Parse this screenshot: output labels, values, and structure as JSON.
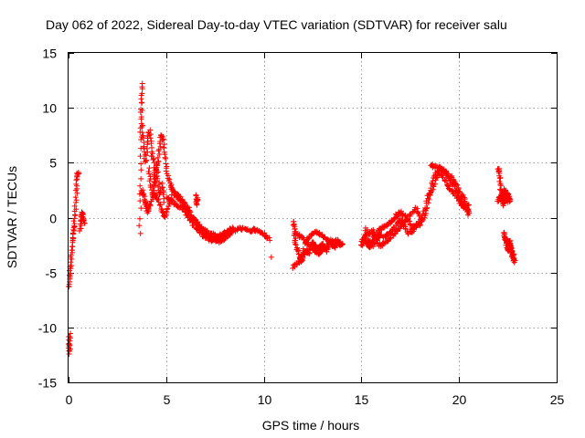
{
  "chart_data": {
    "type": "scatter",
    "title": "Day 062 of 2022, Sidereal Day-to-day VTEC variation (SDTVAR) for receiver salu",
    "xlabel": "GPS time / hours",
    "ylabel": "SDTVAR / TECUs",
    "xlim": [
      0,
      25
    ],
    "ylim": [
      -15,
      15
    ],
    "xticks": [
      0,
      5,
      10,
      15,
      20,
      25
    ],
    "yticks": [
      -15,
      -10,
      -5,
      0,
      5,
      10,
      15
    ],
    "grid": true,
    "marker": "plus",
    "color": "#ff0000",
    "segments": [
      [
        [
          0.0,
          -6.3
        ],
        [
          0.05,
          -5.5
        ],
        [
          0.1,
          -4.5
        ],
        [
          0.15,
          -3.2
        ],
        [
          0.2,
          -2.2
        ],
        [
          0.25,
          -1.5
        ],
        [
          0.3,
          -0.5
        ],
        [
          0.35,
          0.8
        ],
        [
          0.4,
          2.5
        ],
        [
          0.45,
          3.8
        ],
        [
          0.5,
          4.2
        ]
      ],
      [
        [
          0.0,
          -11.0
        ],
        [
          0.02,
          -12.5
        ],
        [
          0.05,
          -10.5
        ],
        [
          0.08,
          -12.0
        ]
      ],
      [
        [
          0.6,
          -1.3
        ],
        [
          0.65,
          -0.2
        ],
        [
          0.7,
          0.5
        ],
        [
          0.75,
          0.0
        ],
        [
          0.8,
          -0.5
        ]
      ],
      [
        [
          3.65,
          -1.5
        ],
        [
          3.68,
          3.0
        ],
        [
          3.7,
          7.0
        ],
        [
          3.72,
          9.5
        ],
        [
          3.75,
          12.3
        ],
        [
          3.78,
          8.5
        ],
        [
          3.85,
          6.5
        ],
        [
          3.95,
          5.0
        ],
        [
          4.05,
          7.0
        ],
        [
          4.15,
          8.0
        ],
        [
          4.25,
          6.0
        ],
        [
          4.35,
          5.0
        ],
        [
          4.45,
          3.0
        ],
        [
          4.55,
          4.5
        ],
        [
          4.65,
          6.0
        ],
        [
          4.75,
          7.5
        ],
        [
          4.85,
          7.0
        ],
        [
          4.95,
          5.5
        ],
        [
          5.05,
          4.0
        ],
        [
          5.2,
          3.0
        ],
        [
          5.35,
          2.5
        ],
        [
          5.5,
          2.0
        ],
        [
          5.7,
          1.5
        ],
        [
          5.9,
          1.0
        ],
        [
          6.1,
          0.5
        ],
        [
          6.3,
          0.0
        ],
        [
          6.5,
          -0.5
        ],
        [
          6.7,
          -1.0
        ],
        [
          6.9,
          -1.3
        ],
        [
          7.1,
          -1.6
        ],
        [
          7.3,
          -1.8
        ],
        [
          7.5,
          -2.0
        ],
        [
          7.7,
          -2.2
        ],
        [
          7.9,
          -2.0
        ],
        [
          8.1,
          -1.7
        ],
        [
          8.3,
          -1.4
        ],
        [
          8.5,
          -1.2
        ],
        [
          8.7,
          -1.0
        ],
        [
          8.9,
          -1.0
        ],
        [
          9.1,
          -1.1
        ],
        [
          9.3,
          -1.2
        ],
        [
          9.5,
          -1.1
        ],
        [
          9.7,
          -1.2
        ],
        [
          9.9,
          -1.4
        ],
        [
          10.1,
          -1.6
        ],
        [
          10.3,
          -2.0
        ]
      ],
      [
        [
          3.75,
          2.5
        ],
        [
          3.85,
          2.0
        ],
        [
          3.95,
          1.2
        ],
        [
          4.05,
          0.5
        ],
        [
          4.15,
          1.0
        ],
        [
          4.3,
          1.8
        ],
        [
          4.45,
          2.2
        ],
        [
          4.6,
          1.5
        ],
        [
          4.75,
          0.8
        ],
        [
          4.9,
          0.0
        ],
        [
          5.05,
          0.5
        ],
        [
          5.2,
          1.5
        ],
        [
          5.4,
          2.2
        ],
        [
          5.6,
          2.0
        ],
        [
          5.8,
          1.6
        ],
        [
          6.0,
          1.2
        ],
        [
          6.2,
          0.6
        ],
        [
          6.4,
          0.0
        ],
        [
          6.6,
          -0.5
        ],
        [
          6.8,
          -0.9
        ],
        [
          7.0,
          -1.2
        ],
        [
          7.2,
          -1.4
        ],
        [
          7.4,
          -1.5
        ],
        [
          7.6,
          -1.7
        ],
        [
          7.8,
          -1.6
        ],
        [
          8.0,
          -1.4
        ],
        [
          8.2,
          -1.2
        ],
        [
          8.4,
          -0.9
        ]
      ],
      [
        [
          4.1,
          4.5
        ],
        [
          4.2,
          3.0
        ],
        [
          4.3,
          2.0
        ],
        [
          4.4,
          3.5
        ],
        [
          4.5,
          5.0
        ],
        [
          4.6,
          3.2
        ],
        [
          4.7,
          2.0
        ],
        [
          4.8,
          3.0
        ],
        [
          4.9,
          1.5
        ]
      ],
      [
        [
          5.05,
          1.8
        ],
        [
          5.25,
          1.5
        ],
        [
          5.45,
          1.2
        ],
        [
          5.65,
          1.0
        ],
        [
          5.85,
          0.8
        ],
        [
          6.05,
          0.3
        ],
        [
          6.25,
          -0.2
        ],
        [
          6.45,
          -0.8
        ],
        [
          6.65,
          -1.2
        ],
        [
          6.85,
          -1.6
        ],
        [
          7.05,
          -1.8
        ],
        [
          7.25,
          -2.0
        ],
        [
          7.45,
          -2.1
        ],
        [
          7.65,
          -1.9
        ],
        [
          7.85,
          -1.8
        ],
        [
          8.05,
          -1.5
        ],
        [
          8.25,
          -1.3
        ]
      ],
      [
        [
          6.5,
          2.0
        ],
        [
          6.55,
          1.2
        ],
        [
          6.6,
          1.8
        ]
      ],
      [
        [
          10.4,
          -3.5
        ]
      ],
      [
        [
          11.5,
          -0.3
        ],
        [
          11.55,
          -1.0
        ],
        [
          11.6,
          -2.0
        ],
        [
          11.7,
          -2.8
        ],
        [
          11.8,
          -3.5
        ],
        [
          11.9,
          -4.0
        ],
        [
          12.0,
          -3.7
        ],
        [
          12.1,
          -3.2
        ],
        [
          12.2,
          -3.0
        ],
        [
          12.3,
          -3.3
        ],
        [
          12.4,
          -2.8
        ],
        [
          12.5,
          -2.2
        ],
        [
          12.6,
          -2.5
        ],
        [
          12.7,
          -2.8
        ],
        [
          12.8,
          -3.0
        ],
        [
          12.9,
          -2.6
        ],
        [
          13.0,
          -2.4
        ],
        [
          13.1,
          -2.8
        ],
        [
          13.2,
          -3.0
        ],
        [
          13.3,
          -2.6
        ],
        [
          13.4,
          -2.2
        ],
        [
          13.5,
          -2.4
        ],
        [
          13.6,
          -2.7
        ],
        [
          13.7,
          -2.5
        ],
        [
          13.8,
          -2.3
        ],
        [
          13.9,
          -2.5
        ],
        [
          14.0,
          -2.4
        ]
      ],
      [
        [
          11.5,
          -4.5
        ],
        [
          11.7,
          -4.2
        ],
        [
          11.9,
          -3.8
        ],
        [
          12.1,
          -2.5
        ],
        [
          12.3,
          -1.8
        ],
        [
          12.5,
          -1.5
        ],
        [
          12.7,
          -1.3
        ],
        [
          12.9,
          -1.5
        ],
        [
          13.1,
          -1.8
        ],
        [
          13.3,
          -2.0
        ],
        [
          13.5,
          -2.2
        ],
        [
          13.7,
          -2.0
        ],
        [
          13.9,
          -2.2
        ]
      ],
      [
        [
          11.6,
          -1.2
        ],
        [
          11.8,
          -1.6
        ],
        [
          12.0,
          -1.9
        ],
        [
          12.2,
          -2.3
        ],
        [
          12.4,
          -2.6
        ],
        [
          12.6,
          -3.0
        ],
        [
          12.8,
          -3.3
        ],
        [
          13.0,
          -3.0
        ],
        [
          13.2,
          -2.6
        ]
      ],
      [
        [
          15.0,
          -2.5
        ],
        [
          15.1,
          -2.0
        ],
        [
          15.2,
          -1.5
        ],
        [
          15.3,
          -2.3
        ],
        [
          15.4,
          -2.8
        ],
        [
          15.5,
          -2.5
        ],
        [
          15.6,
          -2.0
        ],
        [
          15.7,
          -1.5
        ],
        [
          15.8,
          -1.8
        ],
        [
          15.9,
          -1.2
        ],
        [
          16.0,
          -1.0
        ],
        [
          16.2,
          -0.8
        ],
        [
          16.4,
          -0.5
        ],
        [
          16.6,
          -0.2
        ],
        [
          16.8,
          0.2
        ],
        [
          17.0,
          0.5
        ],
        [
          17.2,
          0.2
        ],
        [
          17.4,
          -0.3
        ],
        [
          17.6,
          -1.0
        ],
        [
          17.8,
          -0.6
        ],
        [
          18.0,
          -0.3
        ],
        [
          18.2,
          0.0
        ],
        [
          18.4,
          1.0
        ],
        [
          18.6,
          3.0
        ],
        [
          18.8,
          4.0
        ],
        [
          19.0,
          4.5
        ],
        [
          19.2,
          4.3
        ],
        [
          19.4,
          4.0
        ],
        [
          19.6,
          3.7
        ],
        [
          19.8,
          3.2
        ],
        [
          20.0,
          2.5
        ],
        [
          20.2,
          1.8
        ],
        [
          20.4,
          1.2
        ],
        [
          20.5,
          0.5
        ]
      ],
      [
        [
          15.0,
          -2.0
        ],
        [
          15.2,
          -2.3
        ],
        [
          15.4,
          -2.0
        ],
        [
          15.6,
          -2.5
        ],
        [
          15.8,
          -2.0
        ],
        [
          16.0,
          -1.5
        ],
        [
          16.2,
          -1.8
        ],
        [
          16.4,
          -1.4
        ],
        [
          16.6,
          -1.0
        ],
        [
          16.8,
          -0.6
        ],
        [
          17.0,
          -0.2
        ],
        [
          17.2,
          -0.8
        ],
        [
          17.4,
          -1.5
        ],
        [
          17.6,
          -1.2
        ],
        [
          17.8,
          -0.8
        ],
        [
          18.0,
          -0.6
        ],
        [
          18.2,
          0.5
        ],
        [
          18.4,
          2.0
        ],
        [
          18.6,
          2.5
        ],
        [
          18.8,
          3.5
        ],
        [
          19.0,
          4.2
        ],
        [
          19.2,
          3.6
        ],
        [
          19.4,
          3.0
        ],
        [
          19.6,
          2.5
        ],
        [
          19.8,
          2.0
        ],
        [
          20.0,
          1.5
        ],
        [
          20.2,
          1.0
        ],
        [
          20.4,
          0.8
        ],
        [
          20.5,
          0.3
        ]
      ],
      [
        [
          15.2,
          -1.0
        ],
        [
          15.4,
          -1.5
        ],
        [
          15.6,
          -1.2
        ],
        [
          15.8,
          -2.3
        ],
        [
          16.0,
          -2.6
        ],
        [
          16.2,
          -2.2
        ],
        [
          16.4,
          -2.0
        ],
        [
          16.6,
          -1.6
        ],
        [
          16.8,
          -1.2
        ],
        [
          17.0,
          -0.8
        ],
        [
          17.2,
          -0.4
        ],
        [
          17.4,
          0.0
        ],
        [
          17.6,
          0.4
        ],
        [
          17.8,
          0.8
        ],
        [
          18.0,
          0.2
        ]
      ],
      [
        [
          18.6,
          4.8
        ],
        [
          18.7,
          4.6
        ],
        [
          18.9,
          4.7
        ],
        [
          19.1,
          4.5
        ],
        [
          19.3,
          4.2
        ],
        [
          19.5,
          3.5
        ],
        [
          19.7,
          3.0
        ],
        [
          19.9,
          2.2
        ],
        [
          20.1,
          1.5
        ],
        [
          20.3,
          1.0
        ],
        [
          20.5,
          1.2
        ]
      ],
      [
        [
          22.0,
          4.5
        ],
        [
          22.05,
          4.2
        ],
        [
          22.1,
          3.5
        ],
        [
          22.15,
          2.5
        ],
        [
          22.2,
          2.0
        ],
        [
          22.25,
          1.5
        ],
        [
          22.3,
          2.0
        ],
        [
          22.35,
          2.5
        ],
        [
          22.4,
          2.0
        ],
        [
          22.45,
          1.6
        ],
        [
          22.5,
          2.2
        ],
        [
          22.55,
          1.8
        ],
        [
          22.6,
          1.5
        ]
      ],
      [
        [
          22.0,
          1.5
        ],
        [
          22.1,
          2.0
        ],
        [
          22.2,
          1.6
        ],
        [
          22.3,
          1.2
        ],
        [
          22.4,
          1.8
        ],
        [
          22.5,
          1.4
        ]
      ],
      [
        [
          22.3,
          -1.3
        ],
        [
          22.35,
          -1.8
        ],
        [
          22.4,
          -2.0
        ],
        [
          22.45,
          -2.5
        ],
        [
          22.5,
          -3.0
        ],
        [
          22.55,
          -2.6
        ],
        [
          22.6,
          -2.2
        ],
        [
          22.65,
          -2.8
        ],
        [
          22.7,
          -3.2
        ],
        [
          22.75,
          -3.5
        ],
        [
          22.8,
          -3.8
        ],
        [
          22.85,
          -4.0
        ]
      ],
      [
        [
          22.5,
          -2.0
        ],
        [
          22.6,
          -2.5
        ],
        [
          22.7,
          -3.0
        ],
        [
          22.8,
          -3.3
        ]
      ]
    ]
  }
}
